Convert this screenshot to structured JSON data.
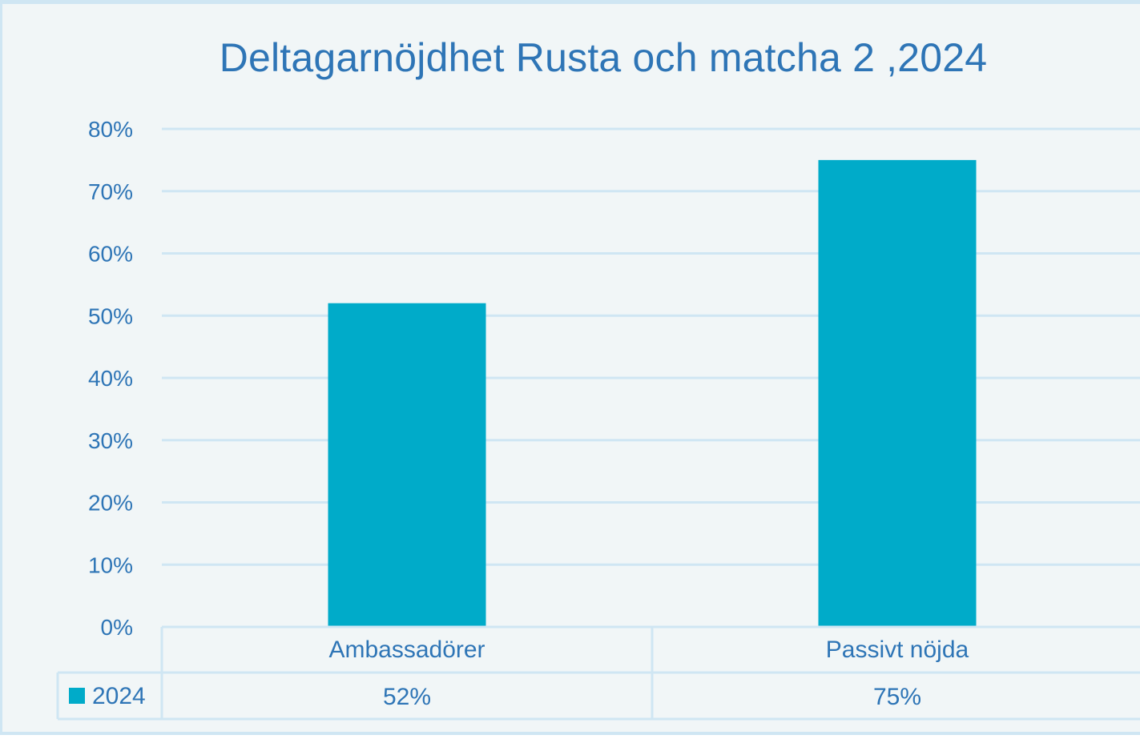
{
  "chart_data": {
    "type": "bar",
    "title": "Deltagarnöjdhet Rusta och matcha 2 ,2024",
    "categories": [
      "Ambassadörer",
      "Passivt nöjda"
    ],
    "series": [
      {
        "name": "2024",
        "values": [
          0.52,
          0.75
        ],
        "value_labels": [
          "52%",
          "75%"
        ]
      }
    ],
    "ylim": [
      0,
      0.8
    ],
    "y_ticks": [
      "0%",
      "10%",
      "20%",
      "30%",
      "40%",
      "50%",
      "60%",
      "70%",
      "80%"
    ],
    "grid": true,
    "legend": "data-table",
    "colors": {
      "bar": "#00abc9",
      "text": "#2e75b6",
      "grid": "#cfe6f3",
      "background": "#f1f6f7"
    }
  }
}
